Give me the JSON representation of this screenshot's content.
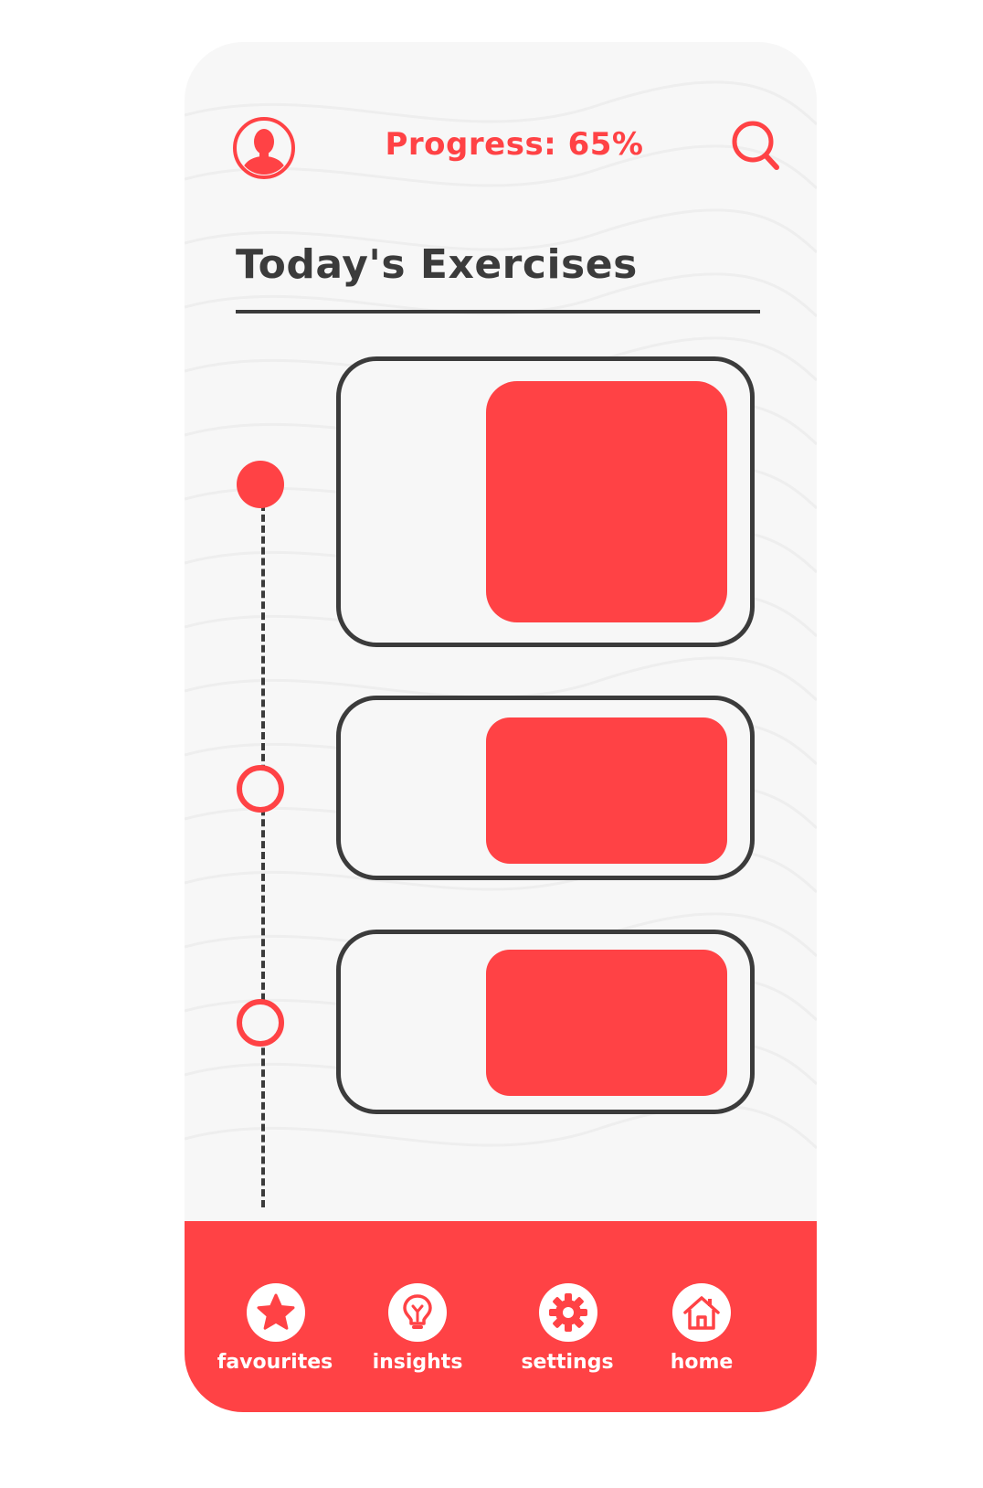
{
  "header": {
    "progress_label": "Progress: 65%",
    "progress_value": 0.65
  },
  "main": {
    "title": "Today's Exercises",
    "exercises": [
      {
        "status": "current"
      },
      {
        "status": "upcoming"
      },
      {
        "status": "upcoming"
      }
    ]
  },
  "nav": {
    "items": [
      {
        "label": "favourites",
        "icon": "star-icon"
      },
      {
        "label": "insights",
        "icon": "lightbulb-icon"
      },
      {
        "label": "settings",
        "icon": "gear-icon"
      },
      {
        "label": "home",
        "icon": "house-icon"
      }
    ]
  },
  "colors": {
    "accent": "#ff4245",
    "dark": "#3b3b3b",
    "background": "#f7f7f7",
    "nav_icon_bg": "#ffffff"
  }
}
